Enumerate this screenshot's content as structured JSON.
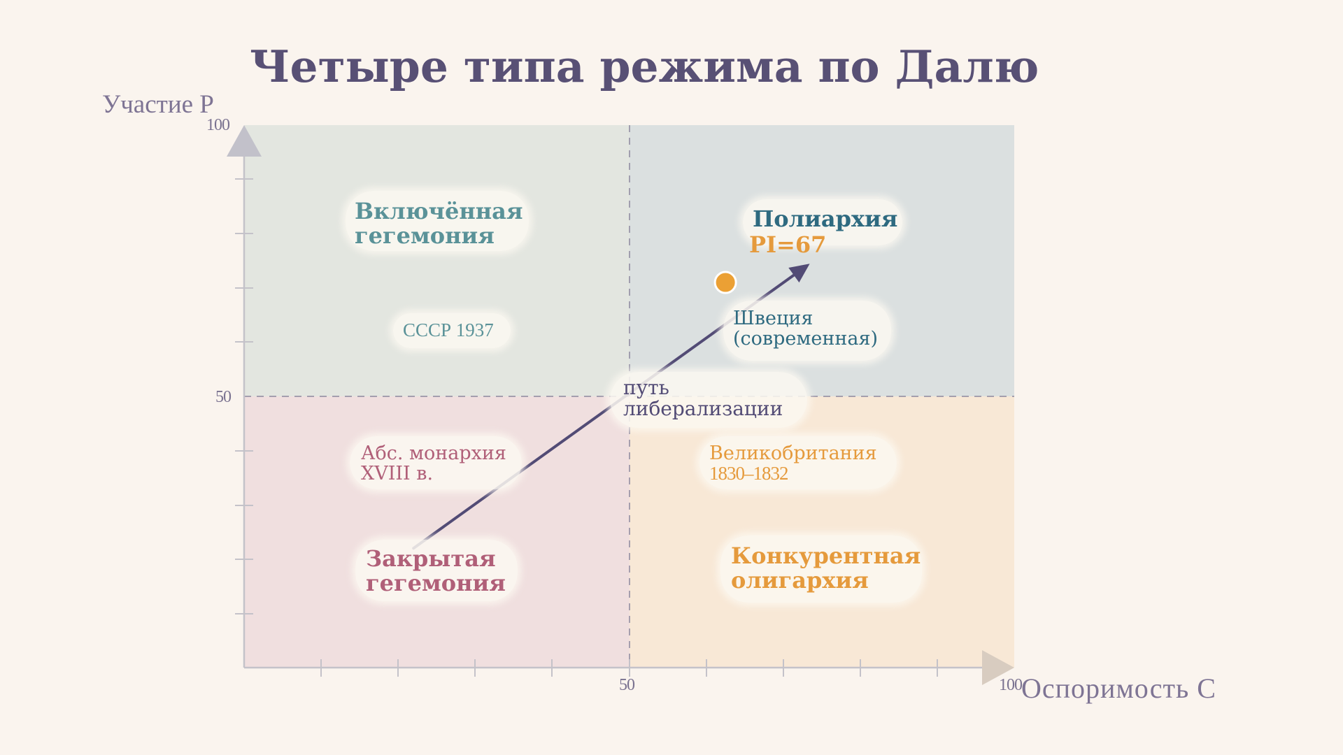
{
  "title": "Четыре типа режима по Далю",
  "axes": {
    "y_label": "Участие P",
    "x_label": "Оспоримость C",
    "y_ticks": [
      "100",
      "50"
    ],
    "x_ticks": [
      "50",
      "100"
    ]
  },
  "quadrants": {
    "top_left": {
      "name_line1": "Включённая",
      "name_line2": "гегемония",
      "example": "СССР 1937"
    },
    "top_right": {
      "name": "Полиархия",
      "index": "PI=67",
      "example_line1": "Швеция",
      "example_line2": "(современная)"
    },
    "bottom_left": {
      "name_line1": "Закрытая",
      "name_line2": "гегемония",
      "example_line1": "Абс. монархия",
      "example_line2": "XVIII в."
    },
    "bottom_right": {
      "name_line1": "Конкурентная",
      "name_line2": "олигархия",
      "example_line1": "Великобритания",
      "example_line2": "1830–1832"
    }
  },
  "path": {
    "label_line1": "путь",
    "label_line2": "либерализации",
    "start": {
      "C": 22,
      "P": 22
    },
    "end": {
      "C": 73,
      "P": 74
    }
  },
  "point": {
    "C": 62.5,
    "P": 71
  },
  "colors": {
    "title": "#585075",
    "q_top_left": "#e3e6e0",
    "q_top_right": "#dbe0e0",
    "q_bottom_left": "#f0dfdf",
    "q_bottom_right": "#f8e8d6",
    "top_left_text": "#5a9298",
    "top_right_text": "#2e6a80",
    "bottom_left_text": "#b05f78",
    "bottom_right_text": "#e59a3c",
    "path": "#524b75",
    "point": "#eba034"
  }
}
